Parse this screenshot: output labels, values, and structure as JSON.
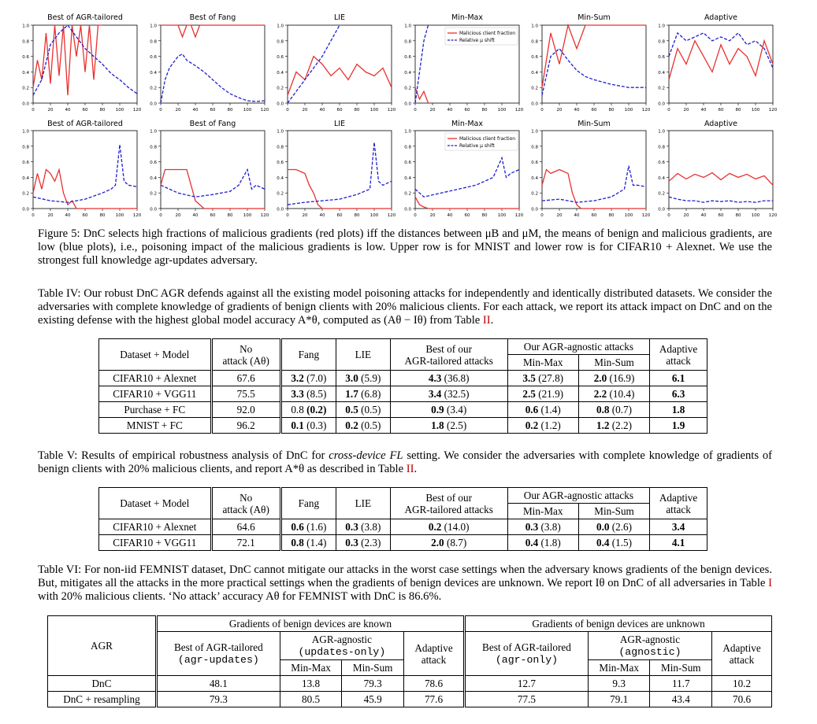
{
  "figure": {
    "caption_label": "Figure 5:",
    "caption_text": "DnC selects high fractions of malicious gradients (red plots) iff the distances between μB and μM, the means of benign and malicious gradients, are low (blue plots), i.e., poisoning impact of the malicious gradients is low. Upper row is for MNIST and lower row is for CIFAR10 + Alexnet. We use the strongest full knowledge agr-updates adversary.",
    "legend": {
      "red": "Malicious client fraction",
      "blue": "Relative μ shift"
    },
    "colors": {
      "red": "#e8312f",
      "blue": "#1f1fd0"
    },
    "x_ticks": [
      "0",
      "20",
      "40",
      "60",
      "80",
      "100",
      "120"
    ],
    "y_ticks": [
      "0.0",
      "0.2",
      "0.4",
      "0.6",
      "0.8",
      "1.0"
    ],
    "rows": [
      [
        "Best of AGR-tailored",
        "Best of Fang",
        "LIE",
        "Min-Max",
        "Min-Sum",
        "Adaptive"
      ],
      [
        "Best of AGR-tailored",
        "Best of Fang",
        "LIE",
        "Min-Max",
        "Min-Sum",
        "Adaptive"
      ]
    ]
  },
  "chart_data": [
    {
      "type": "line",
      "title": "Best of AGR-tailored",
      "row": "MNIST",
      "xlim": [
        0,
        120
      ],
      "ylim": [
        0,
        1
      ],
      "series": [
        {
          "name": "Malicious client fraction",
          "x": [
            0,
            5,
            10,
            15,
            20,
            25,
            30,
            35,
            40,
            45,
            50,
            55,
            60,
            65,
            70,
            75,
            80
          ],
          "y": [
            0.2,
            0.55,
            0.3,
            0.9,
            0.25,
            1.0,
            0.35,
            1.0,
            0.1,
            1.0,
            0.6,
            1.0,
            0.4,
            1.0,
            0.3,
            1.0,
            1.0
          ]
        },
        {
          "name": "Relative μ shift",
          "x": [
            0,
            10,
            20,
            30,
            40,
            50,
            60,
            70,
            80,
            90,
            100,
            110,
            120
          ],
          "y": [
            0.1,
            0.3,
            0.75,
            0.9,
            1.0,
            0.85,
            0.7,
            0.6,
            0.5,
            0.38,
            0.3,
            0.2,
            0.12
          ]
        }
      ]
    },
    {
      "type": "line",
      "title": "Best of Fang",
      "row": "MNIST",
      "xlim": [
        0,
        120
      ],
      "ylim": [
        0,
        1
      ],
      "series": [
        {
          "name": "Malicious client fraction",
          "x": [
            0,
            20,
            25,
            30,
            35,
            40,
            45,
            50,
            120
          ],
          "y": [
            1.0,
            1.0,
            0.85,
            1.0,
            1.0,
            0.85,
            1.0,
            1.0,
            1.0
          ]
        },
        {
          "name": "Relative μ shift",
          "x": [
            0,
            5,
            10,
            20,
            25,
            30,
            40,
            50,
            60,
            70,
            80,
            90,
            100,
            110,
            120
          ],
          "y": [
            0.0,
            0.3,
            0.45,
            0.6,
            0.63,
            0.55,
            0.48,
            0.4,
            0.3,
            0.2,
            0.12,
            0.07,
            0.03,
            0.02,
            0.03
          ]
        }
      ]
    },
    {
      "type": "line",
      "title": "LIE",
      "row": "MNIST",
      "xlim": [
        0,
        120
      ],
      "ylim": [
        0,
        1
      ],
      "series": [
        {
          "name": "Malicious client fraction",
          "x": [
            0,
            10,
            20,
            30,
            40,
            50,
            60,
            70,
            80,
            90,
            100,
            110,
            120
          ],
          "y": [
            0.1,
            0.4,
            0.3,
            0.6,
            0.5,
            0.35,
            0.45,
            0.3,
            0.5,
            0.4,
            0.35,
            0.45,
            0.2
          ]
        },
        {
          "name": "Relative μ shift",
          "x": [
            0,
            20,
            40,
            50,
            60
          ],
          "y": [
            0.0,
            0.3,
            0.6,
            0.8,
            1.0
          ]
        }
      ]
    },
    {
      "type": "line",
      "title": "Min-Max",
      "row": "MNIST",
      "xlim": [
        0,
        120
      ],
      "ylim": [
        0,
        1
      ],
      "series": [
        {
          "name": "Malicious client fraction",
          "x": [
            0,
            5,
            10,
            15
          ],
          "y": [
            0.2,
            0.05,
            0.15,
            0.0
          ]
        },
        {
          "name": "Relative μ shift",
          "x": [
            0,
            5,
            10,
            15
          ],
          "y": [
            0.0,
            0.4,
            0.8,
            1.0
          ]
        }
      ]
    },
    {
      "type": "line",
      "title": "Min-Sum",
      "row": "MNIST",
      "xlim": [
        0,
        120
      ],
      "ylim": [
        0,
        1
      ],
      "series": [
        {
          "name": "Malicious client fraction",
          "x": [
            0,
            10,
            20,
            30,
            40,
            50,
            60,
            120
          ],
          "y": [
            0.2,
            0.9,
            0.5,
            1.0,
            0.7,
            1.0,
            1.0,
            1.0
          ]
        },
        {
          "name": "Relative μ shift",
          "x": [
            0,
            10,
            20,
            30,
            40,
            50,
            60,
            70,
            80,
            90,
            100,
            110,
            120
          ],
          "y": [
            0.1,
            0.6,
            0.7,
            0.55,
            0.42,
            0.34,
            0.3,
            0.27,
            0.24,
            0.22,
            0.2,
            0.2,
            0.2
          ]
        }
      ]
    },
    {
      "type": "line",
      "title": "Adaptive",
      "row": "MNIST",
      "xlim": [
        0,
        120
      ],
      "ylim": [
        0,
        1
      ],
      "series": [
        {
          "name": "Malicious client fraction",
          "x": [
            0,
            10,
            20,
            30,
            40,
            50,
            60,
            70,
            80,
            90,
            100,
            110,
            120
          ],
          "y": [
            0.3,
            0.7,
            0.5,
            0.8,
            0.6,
            0.4,
            0.75,
            0.5,
            0.7,
            0.6,
            0.35,
            0.8,
            0.5
          ]
        },
        {
          "name": "Relative μ shift",
          "x": [
            0,
            10,
            20,
            30,
            40,
            50,
            60,
            70,
            80,
            90,
            100,
            110,
            120
          ],
          "y": [
            0.6,
            0.9,
            0.8,
            0.85,
            0.9,
            0.8,
            0.85,
            0.8,
            0.9,
            0.75,
            0.8,
            0.7,
            0.45
          ]
        }
      ]
    },
    {
      "type": "line",
      "title": "Best of AGR-tailored",
      "row": "CIFAR10 + Alexnet",
      "xlim": [
        0,
        120
      ],
      "ylim": [
        0,
        1
      ],
      "series": [
        {
          "name": "Malicious client fraction",
          "x": [
            0,
            5,
            10,
            15,
            20,
            25,
            30,
            35,
            40,
            45,
            50,
            60,
            120
          ],
          "y": [
            0.2,
            0.45,
            0.25,
            0.5,
            0.45,
            0.35,
            0.5,
            0.2,
            0.05,
            0.1,
            0.0,
            0.0,
            0.0
          ]
        },
        {
          "name": "Relative μ shift",
          "x": [
            0,
            20,
            40,
            60,
            80,
            90,
            95,
            100,
            105,
            110,
            120
          ],
          "y": [
            0.15,
            0.1,
            0.08,
            0.12,
            0.2,
            0.25,
            0.3,
            0.82,
            0.35,
            0.3,
            0.28
          ]
        }
      ]
    },
    {
      "type": "line",
      "title": "Best of Fang",
      "row": "CIFAR10 + Alexnet",
      "xlim": [
        0,
        120
      ],
      "ylim": [
        0,
        1
      ],
      "series": [
        {
          "name": "Malicious client fraction",
          "x": [
            0,
            5,
            10,
            20,
            30,
            35,
            40,
            45,
            50,
            120
          ],
          "y": [
            0.3,
            0.5,
            0.5,
            0.5,
            0.5,
            0.3,
            0.1,
            0.05,
            0.0,
            0.0
          ]
        },
        {
          "name": "Relative μ shift",
          "x": [
            0,
            20,
            40,
            60,
            80,
            90,
            100,
            105,
            110,
            120
          ],
          "y": [
            0.3,
            0.2,
            0.15,
            0.18,
            0.22,
            0.3,
            0.5,
            0.25,
            0.3,
            0.25
          ]
        }
      ]
    },
    {
      "type": "line",
      "title": "LIE",
      "row": "CIFAR10 + Alexnet",
      "xlim": [
        0,
        120
      ],
      "ylim": [
        0,
        1
      ],
      "series": [
        {
          "name": "Malicious client fraction",
          "x": [
            0,
            5,
            10,
            20,
            25,
            30,
            35,
            40,
            120
          ],
          "y": [
            0.5,
            0.5,
            0.5,
            0.45,
            0.3,
            0.2,
            0.05,
            0.0,
            0.0
          ]
        },
        {
          "name": "Relative μ shift",
          "x": [
            0,
            20,
            40,
            60,
            80,
            95,
            100,
            105,
            110,
            120
          ],
          "y": [
            0.05,
            0.08,
            0.1,
            0.12,
            0.18,
            0.25,
            0.85,
            0.35,
            0.3,
            0.35
          ]
        }
      ]
    },
    {
      "type": "line",
      "title": "Min-Max",
      "row": "CIFAR10 + Alexnet",
      "xlim": [
        0,
        120
      ],
      "ylim": [
        0,
        1
      ],
      "series": [
        {
          "name": "Malicious client fraction",
          "x": [
            0,
            5,
            10,
            15,
            120
          ],
          "y": [
            0.15,
            0.05,
            0.02,
            0.0,
            0.0
          ]
        },
        {
          "name": "Relative μ shift",
          "x": [
            0,
            10,
            30,
            50,
            70,
            90,
            100,
            105,
            110,
            120
          ],
          "y": [
            0.25,
            0.15,
            0.2,
            0.25,
            0.3,
            0.4,
            0.65,
            0.4,
            0.45,
            0.5
          ]
        }
      ]
    },
    {
      "type": "line",
      "title": "Min-Sum",
      "row": "CIFAR10 + Alexnet",
      "xlim": [
        0,
        120
      ],
      "ylim": [
        0,
        1
      ],
      "series": [
        {
          "name": "Malicious client fraction",
          "x": [
            0,
            5,
            10,
            20,
            30,
            35,
            40,
            45,
            120
          ],
          "y": [
            0.3,
            0.5,
            0.45,
            0.5,
            0.45,
            0.2,
            0.05,
            0.0,
            0.0
          ]
        },
        {
          "name": "Relative μ shift",
          "x": [
            0,
            20,
            40,
            60,
            80,
            95,
            100,
            105,
            110,
            120
          ],
          "y": [
            0.1,
            0.12,
            0.08,
            0.1,
            0.15,
            0.25,
            0.55,
            0.3,
            0.3,
            0.28
          ]
        }
      ]
    },
    {
      "type": "line",
      "title": "Adaptive",
      "row": "CIFAR10 + Alexnet",
      "xlim": [
        0,
        120
      ],
      "ylim": [
        0,
        1
      ],
      "series": [
        {
          "name": "Malicious client fraction",
          "x": [
            0,
            10,
            20,
            30,
            40,
            50,
            60,
            70,
            80,
            90,
            100,
            110,
            120
          ],
          "y": [
            0.35,
            0.45,
            0.38,
            0.44,
            0.4,
            0.46,
            0.37,
            0.45,
            0.4,
            0.44,
            0.38,
            0.42,
            0.3
          ]
        },
        {
          "name": "Relative μ shift",
          "x": [
            0,
            10,
            20,
            30,
            40,
            50,
            60,
            70,
            80,
            90,
            100,
            110,
            120
          ],
          "y": [
            0.15,
            0.12,
            0.1,
            0.1,
            0.08,
            0.1,
            0.09,
            0.1,
            0.08,
            0.09,
            0.08,
            0.1,
            0.1
          ]
        }
      ]
    }
  ],
  "table4": {
    "caption_label": "Table IV:",
    "caption_text": "Our robust DnC AGR defends against all the existing model poisoning attacks for independently and identically distributed datasets. We consider the adversaries with complete knowledge of gradients of benign clients with 20% malicious clients. For each attack, we report its attack impact on DnC and on the existing defense with the highest global model accuracy A*θ, computed as (Aθ − Iθ) from Table",
    "caption_ref": "II",
    "headers": {
      "dataset": "Dataset + Model",
      "no_attack_1": "No",
      "no_attack_2": "attack (Aθ)",
      "fang": "Fang",
      "lie": "LIE",
      "best_1": "Best of our",
      "best_2": "AGR-tailored attacks",
      "agnostic": "Our AGR-agnostic attacks",
      "minmax": "Min-Max",
      "minsum": "Min-Sum",
      "adaptive_1": "Adaptive",
      "adaptive_2": "attack"
    },
    "rows": [
      {
        "dataset": "CIFAR10 + Alexnet",
        "no_attack": "67.6",
        "fang_a": "3.2",
        "fang_b": "(7.0)",
        "lie_a": "3.0",
        "lie_b": "(5.9)",
        "best_a": "4.3",
        "best_b": "(36.8)",
        "mm_a": "3.5",
        "mm_b": "(27.8)",
        "ms_a": "2.0",
        "ms_b": "(16.9)",
        "adaptive": "6.1"
      },
      {
        "dataset": "CIFAR10 + VGG11",
        "no_attack": "75.5",
        "fang_a": "3.3",
        "fang_b": "(8.5)",
        "lie_a": "1.7",
        "lie_b": "(6.8)",
        "best_a": "3.4",
        "best_b": "(32.5)",
        "mm_a": "2.5",
        "mm_b": "(21.9)",
        "ms_a": "2.2",
        "ms_b": "(10.4)",
        "adaptive": "6.3"
      },
      {
        "dataset": "Purchase + FC",
        "no_attack": "92.0",
        "fang_a": "0.8",
        "fang_b": "(0.2)",
        "lie_a": "0.5",
        "lie_b": "(0.5)",
        "best_a": "0.9",
        "best_b": "(3.4)",
        "mm_a": "0.6",
        "mm_b": "(1.4)",
        "ms_a": "0.8",
        "ms_b": "(0.7)",
        "adaptive": "1.8"
      },
      {
        "dataset": "MNIST + FC",
        "no_attack": "96.2",
        "fang_a": "0.1",
        "fang_b": "(0.3)",
        "lie_a": "0.2",
        "lie_b": "(0.5)",
        "best_a": "1.8",
        "best_b": "(2.5)",
        "mm_a": "0.2",
        "mm_b": "(1.2)",
        "ms_a": "1.2",
        "ms_b": "(2.2)",
        "adaptive": "1.9"
      }
    ]
  },
  "table5": {
    "caption_label": "Table V:",
    "caption_text_1": "Results of empirical robustness analysis of DnC for",
    "caption_italic": "cross-device FL",
    "caption_text_2": "setting. We consider the adversaries with complete knowledge of gradients of benign clients with 20% malicious clients, and report A*θ as described in Table",
    "caption_ref": "II",
    "rows": [
      {
        "dataset": "CIFAR10 + Alexnet",
        "no_attack": "64.6",
        "fang_a": "0.6",
        "fang_b": "(1.6)",
        "lie_a": "0.3",
        "lie_b": "(3.8)",
        "best_a": "0.2",
        "best_b": "(14.0)",
        "mm_a": "0.3",
        "mm_b": "(3.8)",
        "ms_a": "0.0",
        "ms_b": "(2.6)",
        "adaptive": "3.4"
      },
      {
        "dataset": "CIFAR10 + VGG11",
        "no_attack": "72.1",
        "fang_a": "0.8",
        "fang_b": "(1.4)",
        "lie_a": "0.3",
        "lie_b": "(2.3)",
        "best_a": "2.0",
        "best_b": "(8.7)",
        "mm_a": "0.4",
        "mm_b": "(1.8)",
        "ms_a": "0.4",
        "ms_b": "(1.5)",
        "adaptive": "4.1"
      }
    ]
  },
  "table6": {
    "caption_label": "Table VI:",
    "caption_text": "For non-iid FEMNIST dataset, DnC cannot mitigate our attacks in the worst case settings when the adversary knows gradients of the benign devices. But, mitigates all the attacks in the more practical settings when the gradients of benign devices are unknown. We report Iθ on DnC of all adversaries in Table",
    "caption_ref": "I",
    "caption_text_2": "with 20% malicious clients. ‘No attack’ accuracy Aθ for FEMNIST with DnC is 86.6%.",
    "headers": {
      "agr": "AGR",
      "known": "Gradients of benign devices are known",
      "unknown": "Gradients of benign devices are unknown",
      "bt": "Best of AGR-tailored",
      "bt_known_sub": "(agr-updates)",
      "bt_unknown_sub": "(agr-only)",
      "ag": "AGR-agnostic",
      "ag_known_sub": "(updates-only)",
      "ag_unknown_sub": "(agnostic)",
      "adaptive_1": "Adaptive",
      "adaptive_2": "attack",
      "minmax": "Min-Max",
      "minsum": "Min-Sum"
    },
    "rows": [
      {
        "agr": "DnC",
        "k_bt": "48.1",
        "k_mm": "13.8",
        "k_ms": "79.3",
        "k_ad": "78.6",
        "u_bt": "12.7",
        "u_mm": "9.3",
        "u_ms": "11.7",
        "u_ad": "10.2"
      },
      {
        "agr": "DnC + resampling",
        "k_bt": "79.3",
        "k_mm": "80.5",
        "k_ms": "45.9",
        "k_ad": "77.6",
        "u_bt": "77.5",
        "u_mm": "79.1",
        "u_ms": "43.4",
        "u_ad": "70.6"
      }
    ]
  }
}
